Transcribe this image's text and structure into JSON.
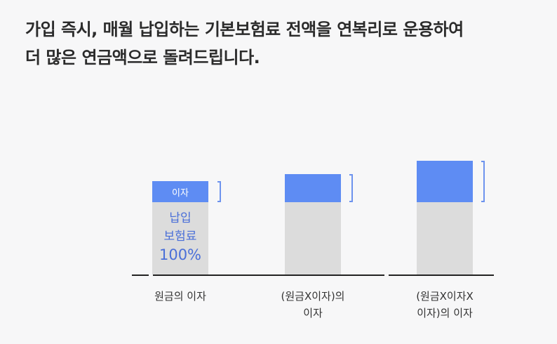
{
  "headline": {
    "line1": "가입 즉시, 매월 납입하는 기본보험료 전액을 연복리로 운용하여",
    "line2": "더 많은 연금액으로 돌려드립니다."
  },
  "diagram": {
    "top_label": "이자",
    "base_label_line1": "납입",
    "base_label_line2": "보험료",
    "base_label_pct": "100%",
    "captions": [
      {
        "line1": "원금의 이자",
        "line2": ""
      },
      {
        "line1": "(원금X이자)의",
        "line2": "이자"
      },
      {
        "line1": "(원금X이자X",
        "line2": "이자)의 이자"
      }
    ]
  },
  "colors": {
    "accent": "#5e8cf3",
    "base": "#dcdcdc",
    "label_blue": "#4a6fd8",
    "text": "#2b2b2b"
  }
}
